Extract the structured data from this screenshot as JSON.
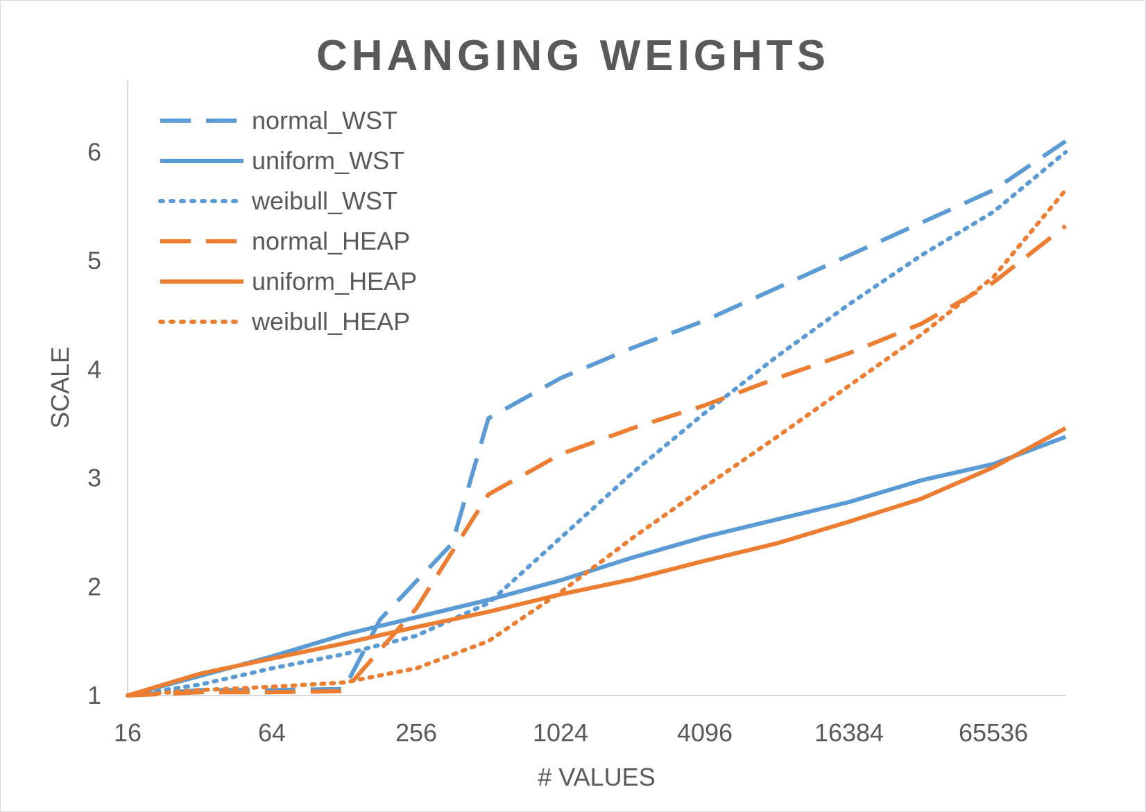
{
  "chart_data": {
    "type": "line",
    "title": "CHANGING WEIGHTS",
    "xlabel": "# VALUES",
    "ylabel": "SCALE",
    "x_scale": "log2",
    "x": [
      16,
      32,
      64,
      128,
      181,
      362,
      724,
      1448,
      2896,
      5792,
      11585,
      23170,
      46341,
      92682,
      131072
    ],
    "x_tick_labels": [
      "16",
      "64",
      "256",
      "1024",
      "4096",
      "16384",
      "65536"
    ],
    "x_tick_values": [
      16,
      64,
      256,
      1024,
      4096,
      16384,
      65536
    ],
    "y_tick_labels": [
      "1",
      "2",
      "3",
      "4",
      "5",
      "6"
    ],
    "y_tick_values": [
      1,
      2,
      3,
      4,
      5,
      6
    ],
    "ylim": [
      1,
      6.5
    ],
    "xlim": [
      16,
      131072
    ],
    "grid": false,
    "legend_position": "top-left",
    "series": [
      {
        "name": "normal_WST",
        "color": "#5B9BD5",
        "style": "dashed",
        "points": [
          [
            16,
            1.0
          ],
          [
            32,
            1.05
          ],
          [
            64,
            1.05
          ],
          [
            128,
            1.06
          ],
          [
            181,
            1.7
          ],
          [
            362,
            2.4
          ],
          [
            512,
            3.55
          ],
          [
            1024,
            3.92
          ],
          [
            2048,
            4.2
          ],
          [
            4096,
            4.45
          ],
          [
            8192,
            4.75
          ],
          [
            16384,
            5.05
          ],
          [
            32768,
            5.35
          ],
          [
            65536,
            5.65
          ],
          [
            131072,
            6.1
          ]
        ]
      },
      {
        "name": "uniform_WST",
        "color": "#5B9BD5",
        "style": "solid",
        "points": [
          [
            16,
            1.0
          ],
          [
            32,
            1.18
          ],
          [
            64,
            1.36
          ],
          [
            128,
            1.56
          ],
          [
            256,
            1.72
          ],
          [
            512,
            1.88
          ],
          [
            1024,
            2.06
          ],
          [
            2048,
            2.27
          ],
          [
            4096,
            2.46
          ],
          [
            8192,
            2.62
          ],
          [
            16384,
            2.78
          ],
          [
            32768,
            2.98
          ],
          [
            65536,
            3.13
          ],
          [
            131072,
            3.38
          ]
        ]
      },
      {
        "name": "weibull_WST",
        "color": "#5B9BD5",
        "style": "dotted",
        "points": [
          [
            16,
            1.0
          ],
          [
            32,
            1.1
          ],
          [
            64,
            1.25
          ],
          [
            128,
            1.38
          ],
          [
            256,
            1.55
          ],
          [
            512,
            1.85
          ],
          [
            1024,
            2.45
          ],
          [
            2048,
            3.05
          ],
          [
            4096,
            3.6
          ],
          [
            8192,
            4.12
          ],
          [
            16384,
            4.6
          ],
          [
            32768,
            5.05
          ],
          [
            65536,
            5.45
          ],
          [
            131072,
            6.0
          ]
        ]
      },
      {
        "name": "normal_HEAP",
        "color": "#ED7D31",
        "style": "dashed",
        "points": [
          [
            16,
            1.0
          ],
          [
            32,
            1.03
          ],
          [
            64,
            1.03
          ],
          [
            128,
            1.04
          ],
          [
            256,
            1.8
          ],
          [
            512,
            2.85
          ],
          [
            1024,
            3.22
          ],
          [
            2048,
            3.46
          ],
          [
            4096,
            3.67
          ],
          [
            8192,
            3.92
          ],
          [
            16384,
            4.15
          ],
          [
            32768,
            4.42
          ],
          [
            65536,
            4.8
          ],
          [
            131072,
            5.32
          ]
        ]
      },
      {
        "name": "uniform_HEAP",
        "color": "#ED7D31",
        "style": "solid",
        "points": [
          [
            16,
            1.0
          ],
          [
            32,
            1.2
          ],
          [
            64,
            1.34
          ],
          [
            128,
            1.48
          ],
          [
            256,
            1.63
          ],
          [
            512,
            1.77
          ],
          [
            1024,
            1.93
          ],
          [
            2048,
            2.07
          ],
          [
            4096,
            2.24
          ],
          [
            8192,
            2.4
          ],
          [
            16384,
            2.6
          ],
          [
            32768,
            2.81
          ],
          [
            65536,
            3.1
          ],
          [
            131072,
            3.46
          ]
        ]
      },
      {
        "name": "weibull_HEAP",
        "color": "#ED7D31",
        "style": "dotted",
        "points": [
          [
            16,
            1.0
          ],
          [
            32,
            1.05
          ],
          [
            64,
            1.08
          ],
          [
            128,
            1.12
          ],
          [
            256,
            1.25
          ],
          [
            512,
            1.5
          ],
          [
            1024,
            1.95
          ],
          [
            2048,
            2.45
          ],
          [
            4096,
            2.92
          ],
          [
            8192,
            3.38
          ],
          [
            16384,
            3.85
          ],
          [
            32768,
            4.32
          ],
          [
            65536,
            4.85
          ],
          [
            131072,
            5.65
          ]
        ]
      }
    ]
  }
}
